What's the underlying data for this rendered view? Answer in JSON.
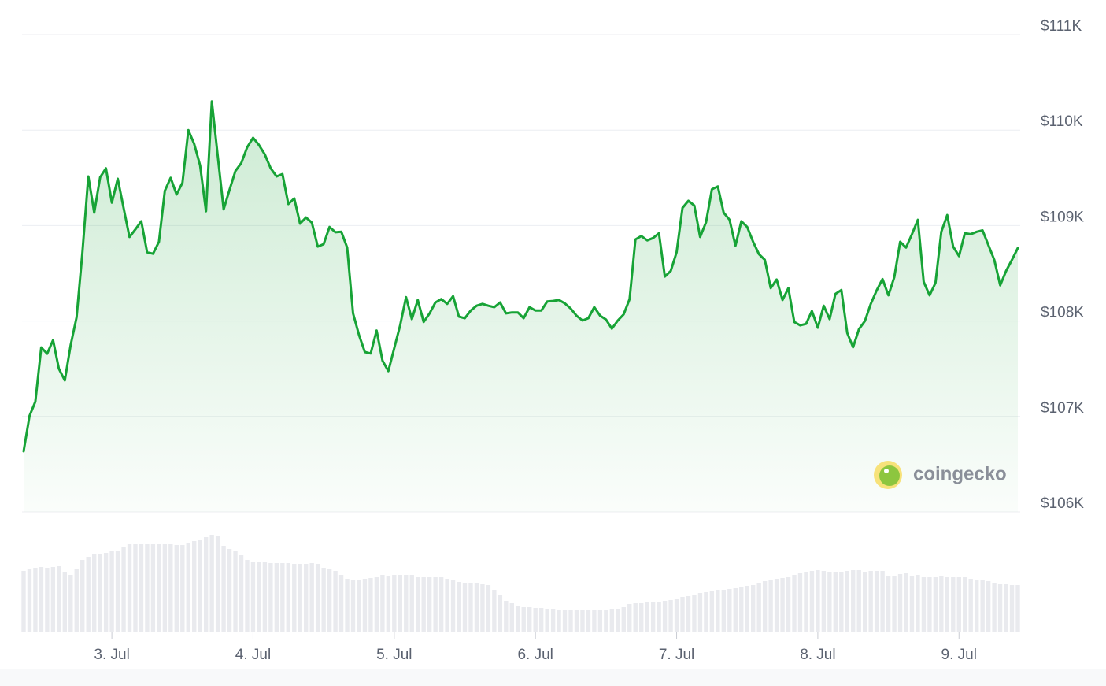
{
  "chart_data": {
    "type": "line",
    "color": "#17a336",
    "values": [
      106635,
      107006,
      107155,
      107724,
      107658,
      107800,
      107500,
      107378,
      107750,
      108040,
      108720,
      109515,
      109135,
      109506,
      109600,
      109240,
      109490,
      109185,
      108880,
      108960,
      109045,
      108720,
      108705,
      108830,
      109365,
      109500,
      109325,
      109450,
      110000,
      109855,
      109630,
      109150,
      110300,
      109730,
      109170,
      109375,
      109570,
      109655,
      109820,
      109920,
      109845,
      109745,
      109600,
      109515,
      109540,
      109225,
      109285,
      109020,
      109085,
      109030,
      108780,
      108805,
      108985,
      108930,
      108935,
      108770,
      108080,
      107855,
      107675,
      107660,
      107900,
      107585,
      107475,
      107715,
      107955,
      108250,
      108020,
      108220,
      107990,
      108080,
      108195,
      108230,
      108180,
      108260,
      108045,
      108030,
      108110,
      108160,
      108180,
      108160,
      108145,
      108195,
      108080,
      108090,
      108090,
      108030,
      108145,
      108110,
      108110,
      108205,
      108210,
      108220,
      108185,
      108130,
      108055,
      108005,
      108030,
      108145,
      108055,
      108015,
      107920,
      108005,
      108070,
      108230,
      108855,
      108890,
      108845,
      108870,
      108920,
      108465,
      108525,
      108720,
      109185,
      109260,
      109210,
      108880,
      109035,
      109380,
      109410,
      109135,
      109060,
      108790,
      109045,
      108985,
      108830,
      108700,
      108640,
      108345,
      108435,
      108220,
      108345,
      107990,
      107955,
      107970,
      108105,
      107930,
      108160,
      108020,
      108285,
      108325,
      107875,
      107725,
      107915,
      108000,
      108180,
      108320,
      108440,
      108270,
      108460,
      108830,
      108770,
      108910,
      109060,
      108410,
      108270,
      108400,
      108935,
      109110,
      108780,
      108680,
      108920,
      108910,
      108935,
      108950,
      108795,
      108640,
      108375,
      108525,
      108640,
      108765
    ],
    "xlim": [
      0,
      169
    ],
    "xticks": [
      {
        "value": 15,
        "label": "3. Jul"
      },
      {
        "value": 39,
        "label": "4. Jul"
      },
      {
        "value": 63,
        "label": "5. Jul"
      },
      {
        "value": 87,
        "label": "6. Jul"
      },
      {
        "value": 111,
        "label": "7. Jul"
      },
      {
        "value": 135,
        "label": "8. Jul"
      },
      {
        "value": 159,
        "label": "9. Jul"
      }
    ],
    "ylim": [
      106000,
      111000
    ],
    "yticks": [
      {
        "value": 106000,
        "label": "$106K"
      },
      {
        "value": 107000,
        "label": "$107K"
      },
      {
        "value": 108000,
        "label": "$108K"
      },
      {
        "value": 109000,
        "label": "$109K"
      },
      {
        "value": 110000,
        "label": "$110K"
      },
      {
        "value": 111000,
        "label": "$111K"
      }
    ],
    "grid": true,
    "volume": {
      "color": "#e9eaee",
      "lim": [
        0,
        143
      ],
      "values": [
        78,
        80,
        82,
        83,
        82,
        83,
        84,
        77,
        73,
        80,
        92,
        96,
        99,
        100,
        101,
        103,
        104,
        108,
        112,
        112,
        112,
        112,
        112,
        112,
        112,
        112,
        111,
        111,
        114,
        116,
        118,
        121,
        124,
        123,
        110,
        106,
        103,
        98,
        92,
        90,
        90,
        89,
        88,
        88,
        88,
        88,
        87,
        87,
        87,
        88,
        87,
        82,
        80,
        78,
        73,
        68,
        66,
        67,
        68,
        69,
        71,
        73,
        72,
        73,
        73,
        73,
        73,
        71,
        70,
        70,
        70,
        70,
        68,
        66,
        64,
        63,
        63,
        63,
        62,
        60,
        54,
        47,
        40,
        37,
        34,
        32,
        32,
        31,
        31,
        30,
        30,
        29,
        29,
        29,
        29,
        29,
        29,
        29,
        29,
        29,
        30,
        30,
        32,
        36,
        38,
        38,
        39,
        39,
        39,
        40,
        41,
        43,
        45,
        46,
        47,
        50,
        51,
        53,
        54,
        54,
        55,
        56,
        58,
        59,
        60,
        63,
        65,
        67,
        68,
        69,
        71,
        73,
        75,
        77,
        78,
        79,
        78,
        77,
        77,
        77,
        78,
        79,
        79,
        77,
        78,
        78,
        78,
        72,
        72,
        74,
        75,
        72,
        73,
        70,
        71,
        71,
        72,
        71,
        71,
        70,
        70,
        68,
        67,
        66,
        65,
        63,
        62,
        61,
        60,
        60
      ]
    },
    "watermark": "coingecko"
  }
}
